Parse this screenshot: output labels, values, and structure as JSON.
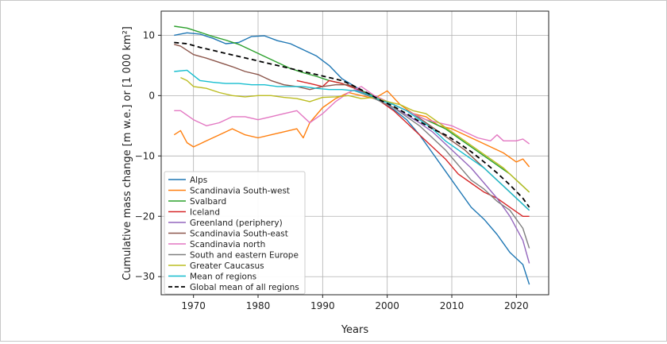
{
  "chart_data": {
    "type": "line",
    "title": "",
    "xlabel": "Years",
    "ylabel": "Cumulative mass change [m w.e.] or [1 000 km²]",
    "xlim": [
      1965,
      2025
    ],
    "ylim": [
      -33,
      14
    ],
    "xticks": [
      1970,
      1980,
      1990,
      2000,
      2010,
      2020
    ],
    "yticks": [
      10,
      0,
      -10,
      -20,
      -30
    ],
    "grid": true,
    "legend_position": "lower-left",
    "series": [
      {
        "name": "Alps",
        "color": "#1f77b4",
        "dash": "",
        "points": [
          [
            1967,
            10
          ],
          [
            1969,
            10.4
          ],
          [
            1971,
            10.2
          ],
          [
            1973,
            9.5
          ],
          [
            1975,
            8.6
          ],
          [
            1977,
            8.8
          ],
          [
            1979,
            9.8
          ],
          [
            1981,
            9.9
          ],
          [
            1983,
            9.1
          ],
          [
            1985,
            8.6
          ],
          [
            1987,
            7.6
          ],
          [
            1989,
            6.6
          ],
          [
            1991,
            5
          ],
          [
            1993,
            2.8
          ],
          [
            1995,
            1.5
          ],
          [
            1997,
            0.3
          ],
          [
            1999,
            -1
          ],
          [
            2001,
            -2.3
          ],
          [
            2003,
            -4
          ],
          [
            2005,
            -6.5
          ],
          [
            2007,
            -9.5
          ],
          [
            2009,
            -12.5
          ],
          [
            2011,
            -15.5
          ],
          [
            2013,
            -18.5
          ],
          [
            2015,
            -20.5
          ],
          [
            2017,
            -23
          ],
          [
            2019,
            -26
          ],
          [
            2021,
            -28
          ],
          [
            2022,
            -31.3
          ]
        ]
      },
      {
        "name": "Scandinavia South-west",
        "color": "#ff7f0e",
        "dash": "",
        "points": [
          [
            1967,
            -6.5
          ],
          [
            1968,
            -5.8
          ],
          [
            1969,
            -7.8
          ],
          [
            1970,
            -8.5
          ],
          [
            1972,
            -7.5
          ],
          [
            1974,
            -6.5
          ],
          [
            1976,
            -5.5
          ],
          [
            1978,
            -6.5
          ],
          [
            1980,
            -7
          ],
          [
            1982,
            -6.5
          ],
          [
            1984,
            -6
          ],
          [
            1986,
            -5.5
          ],
          [
            1987,
            -7
          ],
          [
            1988,
            -4.5
          ],
          [
            1990,
            -2
          ],
          [
            1992,
            -0.5
          ],
          [
            1994,
            0.5
          ],
          [
            1996,
            0
          ],
          [
            1998,
            -0.5
          ],
          [
            2000,
            0.8
          ],
          [
            2002,
            -1.5
          ],
          [
            2004,
            -3
          ],
          [
            2006,
            -3.5
          ],
          [
            2008,
            -5
          ],
          [
            2010,
            -5.5
          ],
          [
            2012,
            -6.5
          ],
          [
            2014,
            -7.5
          ],
          [
            2016,
            -8.5
          ],
          [
            2018,
            -9.5
          ],
          [
            2020,
            -11
          ],
          [
            2021,
            -10.5
          ],
          [
            2022,
            -11.8
          ]
        ]
      },
      {
        "name": "Svalbard",
        "color": "#2ca02c",
        "dash": "",
        "points": [
          [
            1967,
            11.5
          ],
          [
            1969,
            11.2
          ],
          [
            1971,
            10.5
          ],
          [
            1973,
            9.8
          ],
          [
            1975,
            9.2
          ],
          [
            1977,
            8.5
          ],
          [
            1979,
            7.5
          ],
          [
            1981,
            6.5
          ],
          [
            1983,
            5.5
          ],
          [
            1985,
            4.5
          ],
          [
            1987,
            3.8
          ],
          [
            1989,
            3.2
          ],
          [
            1991,
            2.5
          ],
          [
            1993,
            2
          ],
          [
            1995,
            1.2
          ],
          [
            1997,
            0.4
          ],
          [
            1999,
            -0.5
          ],
          [
            2001,
            -1.5
          ],
          [
            2003,
            -2.5
          ],
          [
            2005,
            -3.5
          ],
          [
            2007,
            -4.5
          ],
          [
            2009,
            -5.5
          ],
          [
            2011,
            -7
          ],
          [
            2013,
            -8.5
          ],
          [
            2015,
            -10
          ],
          [
            2017,
            -11.5
          ],
          [
            2019,
            -13
          ],
          [
            2021,
            -15
          ],
          [
            2022,
            -16
          ]
        ]
      },
      {
        "name": "Iceland",
        "color": "#d62728",
        "dash": "",
        "points": [
          [
            1986,
            2.5
          ],
          [
            1988,
            2
          ],
          [
            1990,
            1.5
          ],
          [
            1991,
            2.5
          ],
          [
            1993,
            2
          ],
          [
            1995,
            1.2
          ],
          [
            1997,
            0.2
          ],
          [
            1999,
            -1
          ],
          [
            2001,
            -2.5
          ],
          [
            2003,
            -4.5
          ],
          [
            2005,
            -6.5
          ],
          [
            2007,
            -8.5
          ],
          [
            2009,
            -10.5
          ],
          [
            2011,
            -13
          ],
          [
            2013,
            -14.5
          ],
          [
            2015,
            -16
          ],
          [
            2017,
            -17
          ],
          [
            2019,
            -18.5
          ],
          [
            2021,
            -20
          ],
          [
            2022,
            -20
          ]
        ]
      },
      {
        "name": "Greenland (periphery)",
        "color": "#9467bd",
        "dash": "",
        "points": [
          [
            1995,
            1
          ],
          [
            1997,
            0.2
          ],
          [
            1999,
            -1
          ],
          [
            2001,
            -2
          ],
          [
            2003,
            -3.2
          ],
          [
            2005,
            -4.5
          ],
          [
            2007,
            -6
          ],
          [
            2009,
            -8
          ],
          [
            2011,
            -10
          ],
          [
            2013,
            -12
          ],
          [
            2015,
            -14.5
          ],
          [
            2017,
            -17
          ],
          [
            2019,
            -20
          ],
          [
            2021,
            -24
          ],
          [
            2022,
            -27.8
          ]
        ]
      },
      {
        "name": "Scandinavia South-east",
        "color": "#8c564b",
        "dash": "",
        "points": [
          [
            1967,
            8.5
          ],
          [
            1968,
            8.2
          ],
          [
            1970,
            6.8
          ],
          [
            1972,
            6.2
          ],
          [
            1974,
            5.5
          ],
          [
            1976,
            4.8
          ],
          [
            1978,
            4
          ],
          [
            1980,
            3.5
          ],
          [
            1982,
            2.5
          ],
          [
            1984,
            1.8
          ],
          [
            1986,
            1.5
          ],
          [
            1988,
            1
          ],
          [
            1990,
            1.5
          ],
          [
            1992,
            1.8
          ],
          [
            1994,
            1.8
          ],
          [
            1996,
            0.8
          ],
          [
            1998,
            -0.5
          ],
          [
            2000,
            -1
          ],
          [
            2002,
            -2
          ],
          [
            2004,
            -3
          ],
          [
            2006,
            -4.5
          ],
          [
            2008,
            -6
          ],
          [
            2010,
            -7.5
          ],
          [
            2012,
            -9
          ],
          [
            2014,
            -11
          ],
          [
            2016,
            -13
          ],
          [
            2018,
            -15
          ],
          [
            2020,
            -17
          ],
          [
            2022,
            -19
          ]
        ]
      },
      {
        "name": "Scandinavia north",
        "color": "#e377c2",
        "dash": "",
        "points": [
          [
            1967,
            -2.5
          ],
          [
            1968,
            -2.5
          ],
          [
            1970,
            -4
          ],
          [
            1972,
            -5
          ],
          [
            1974,
            -4.5
          ],
          [
            1976,
            -3.5
          ],
          [
            1978,
            -3.5
          ],
          [
            1980,
            -4
          ],
          [
            1982,
            -3.5
          ],
          [
            1984,
            -3
          ],
          [
            1986,
            -2.5
          ],
          [
            1988,
            -4.5
          ],
          [
            1990,
            -3
          ],
          [
            1992,
            -1
          ],
          [
            1994,
            0.5
          ],
          [
            1996,
            1.5
          ],
          [
            1998,
            0
          ],
          [
            2000,
            -1
          ],
          [
            2002,
            -2
          ],
          [
            2004,
            -3
          ],
          [
            2006,
            -4
          ],
          [
            2008,
            -4.5
          ],
          [
            2010,
            -5
          ],
          [
            2012,
            -6
          ],
          [
            2014,
            -7
          ],
          [
            2016,
            -7.5
          ],
          [
            2017,
            -6.5
          ],
          [
            2018,
            -7.5
          ],
          [
            2020,
            -7.5
          ],
          [
            2021,
            -7.2
          ],
          [
            2022,
            -8
          ]
        ]
      },
      {
        "name": "South and eastern Europe",
        "color": "#7f7f7f",
        "dash": "",
        "points": [
          [
            1995,
            0.8
          ],
          [
            1997,
            0
          ],
          [
            1999,
            -1
          ],
          [
            2001,
            -2
          ],
          [
            2003,
            -3.5
          ],
          [
            2005,
            -5
          ],
          [
            2007,
            -7
          ],
          [
            2009,
            -9
          ],
          [
            2011,
            -11.5
          ],
          [
            2013,
            -14
          ],
          [
            2015,
            -15.5
          ],
          [
            2017,
            -17.5
          ],
          [
            2019,
            -19
          ],
          [
            2021,
            -22
          ],
          [
            2022,
            -25.3
          ]
        ]
      },
      {
        "name": "Greater Caucasus",
        "color": "#bcbd22",
        "dash": "",
        "points": [
          [
            1968,
            3
          ],
          [
            1969,
            2.5
          ],
          [
            1970,
            1.5
          ],
          [
            1972,
            1.2
          ],
          [
            1974,
            0.5
          ],
          [
            1976,
            0
          ],
          [
            1978,
            -0.2
          ],
          [
            1980,
            0
          ],
          [
            1982,
            0
          ],
          [
            1984,
            -0.3
          ],
          [
            1986,
            -0.5
          ],
          [
            1988,
            -1
          ],
          [
            1990,
            -0.3
          ],
          [
            1992,
            -0.2
          ],
          [
            1994,
            0
          ],
          [
            1996,
            -0.5
          ],
          [
            1998,
            -0.3
          ],
          [
            2000,
            -1
          ],
          [
            2002,
            -1.5
          ],
          [
            2004,
            -2.5
          ],
          [
            2006,
            -3
          ],
          [
            2008,
            -4.5
          ],
          [
            2010,
            -6
          ],
          [
            2012,
            -7.5
          ],
          [
            2014,
            -9
          ],
          [
            2016,
            -10.5
          ],
          [
            2018,
            -12
          ],
          [
            2020,
            -14
          ],
          [
            2022,
            -16
          ]
        ]
      },
      {
        "name": "Mean of regions",
        "color": "#17becf",
        "dash": "",
        "points": [
          [
            1967,
            4
          ],
          [
            1969,
            4.2
          ],
          [
            1971,
            2.5
          ],
          [
            1973,
            2.2
          ],
          [
            1975,
            2
          ],
          [
            1977,
            2
          ],
          [
            1979,
            1.8
          ],
          [
            1981,
            1.8
          ],
          [
            1983,
            1.5
          ],
          [
            1985,
            1.5
          ],
          [
            1987,
            1.5
          ],
          [
            1989,
            1.2
          ],
          [
            1991,
            1
          ],
          [
            1993,
            1
          ],
          [
            1995,
            0.8
          ],
          [
            1997,
            0.2
          ],
          [
            1999,
            -0.8
          ],
          [
            2001,
            -1.5
          ],
          [
            2003,
            -2.5
          ],
          [
            2005,
            -4
          ],
          [
            2007,
            -5.5
          ],
          [
            2009,
            -7.5
          ],
          [
            2011,
            -9
          ],
          [
            2013,
            -10.5
          ],
          [
            2015,
            -12
          ],
          [
            2017,
            -14
          ],
          [
            2019,
            -16
          ],
          [
            2021,
            -18
          ],
          [
            2022,
            -19
          ]
        ]
      },
      {
        "name": "Global mean of all regions",
        "color": "#000000",
        "dash": "6,4",
        "points": [
          [
            1967,
            8.8
          ],
          [
            1969,
            8.6
          ],
          [
            1971,
            8
          ],
          [
            1973,
            7.5
          ],
          [
            1975,
            7
          ],
          [
            1977,
            6.5
          ],
          [
            1979,
            6
          ],
          [
            1981,
            5.5
          ],
          [
            1983,
            5
          ],
          [
            1985,
            4.5
          ],
          [
            1987,
            4
          ],
          [
            1989,
            3.5
          ],
          [
            1991,
            3
          ],
          [
            1993,
            2.5
          ],
          [
            1995,
            1.5
          ],
          [
            1997,
            0.4
          ],
          [
            1999,
            -0.8
          ],
          [
            2001,
            -1.8
          ],
          [
            2003,
            -3
          ],
          [
            2005,
            -4.3
          ],
          [
            2007,
            -5.5
          ],
          [
            2009,
            -6.5
          ],
          [
            2011,
            -7.8
          ],
          [
            2013,
            -9.3
          ],
          [
            2015,
            -11
          ],
          [
            2017,
            -12.8
          ],
          [
            2019,
            -14.8
          ],
          [
            2021,
            -17
          ],
          [
            2022,
            -18.5
          ]
        ]
      }
    ]
  }
}
